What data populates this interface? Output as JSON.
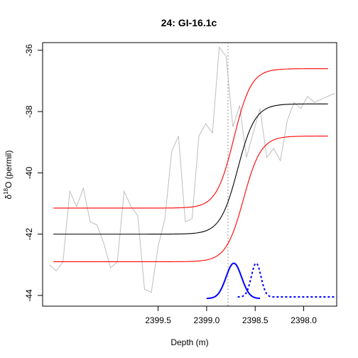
{
  "chart_data": {
    "type": "line",
    "title": "24: GI-16.1c",
    "xlabel": "Depth (m)",
    "ylabel": {
      "prefix": "δ",
      "sup": "18",
      "suffix": "O (permil)"
    },
    "xlim": [
      2400.69,
      2397.66
    ],
    "ylim": [
      -44.35,
      -35.75
    ],
    "x_reversed": true,
    "x_ticks": [
      {
        "value": 2399.5,
        "label": "2399.5"
      },
      {
        "value": 2399.0,
        "label": "2399.0"
      },
      {
        "value": 2398.5,
        "label": "2398.5"
      },
      {
        "value": 2398.0,
        "label": "2398.0"
      }
    ],
    "y_ticks": [
      {
        "value": -36,
        "label": "-36"
      },
      {
        "value": -38,
        "label": "-38"
      },
      {
        "value": -40,
        "label": "-40"
      },
      {
        "value": -42,
        "label": "-42"
      },
      {
        "value": -44,
        "label": "-44"
      }
    ],
    "transition_marker": {
      "x": 2398.78,
      "style": "dotted",
      "color": "#777777"
    },
    "series": [
      {
        "role": "observed-data",
        "color": "#bebebe",
        "x": [
          2400.62,
          2400.55,
          2400.48,
          2400.41,
          2400.34,
          2400.27,
          2400.2,
          2400.13,
          2400.06,
          2399.99,
          2399.92,
          2399.85,
          2399.78,
          2399.71,
          2399.64,
          2399.57,
          2399.5,
          2399.43,
          2399.36,
          2399.29,
          2399.22,
          2399.15,
          2399.08,
          2399.01,
          2398.94,
          2398.87,
          2398.8,
          2398.73,
          2398.66,
          2398.59,
          2398.52,
          2398.45,
          2398.38,
          2398.31,
          2398.24,
          2398.17,
          2398.1,
          2398.03,
          2397.96,
          2397.89,
          2397.82,
          2397.75,
          2397.68
        ],
        "y": [
          -43.0,
          -43.2,
          -42.9,
          -40.6,
          -41.1,
          -40.5,
          -41.6,
          -41.7,
          -42.3,
          -43.1,
          -42.9,
          -40.6,
          -41.1,
          -41.4,
          -43.8,
          -43.9,
          -42.4,
          -41.5,
          -39.3,
          -38.8,
          -41.6,
          -41.5,
          -38.8,
          -38.4,
          -38.7,
          -35.9,
          -36.2,
          -38.5,
          -37.8,
          -39.5,
          -38.7,
          -37.9,
          -39.5,
          -39.2,
          -39.6,
          -38.3,
          -37.7,
          -37.9,
          -37.5,
          -37.7,
          -37.6,
          -37.5,
          -37.4
        ]
      },
      {
        "role": "fit-mean",
        "color": "#000000",
        "x_start": 2400.58,
        "x_end": 2397.75,
        "level_before": -42.0,
        "level_after": -37.75,
        "center": 2398.68,
        "width": 0.09
      },
      {
        "role": "fit-upper",
        "color": "#ff0000",
        "x_start": 2400.58,
        "x_end": 2397.75,
        "level_before": -41.15,
        "level_after": -36.6,
        "center": 2398.72,
        "width": 0.09
      },
      {
        "role": "fit-lower",
        "color": "#ff0000",
        "x_start": 2400.58,
        "x_end": 2397.75,
        "level_before": -42.9,
        "level_after": -38.8,
        "center": 2398.62,
        "width": 0.09
      }
    ],
    "distributions": [
      {
        "role": "onset-distribution",
        "style": "solid",
        "color": "#0000ff",
        "center": 2398.72,
        "sigma": 0.08,
        "x_start": 2399.0,
        "x_end": 2398.45,
        "base": -44.1,
        "peak": -42.95
      },
      {
        "role": "duration-distribution",
        "style": "dashed",
        "color": "#0000ff",
        "center": 2398.49,
        "sigma": 0.05,
        "x_start": 2398.68,
        "x_end": 2397.66,
        "base": -44.05,
        "peak": -42.95
      }
    ]
  }
}
